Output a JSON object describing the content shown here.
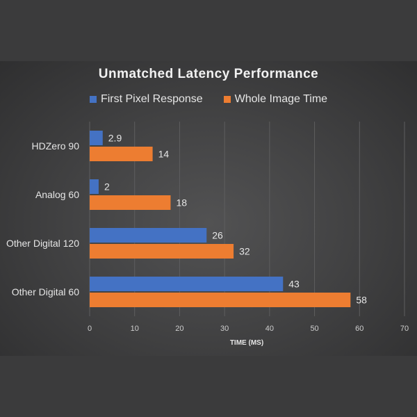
{
  "chart_data": {
    "type": "bar",
    "orientation": "horizontal",
    "title": "Unmatched Latency Performance",
    "xlabel": "TIME (MS)",
    "ylabel": "",
    "categories": [
      "HDZero 90",
      "Analog 60",
      "Other Digital 120",
      "Other Digital 60"
    ],
    "series": [
      {
        "name": "First Pixel Response",
        "color": "#4472c4",
        "values": [
          2.9,
          2,
          26,
          43
        ]
      },
      {
        "name": "Whole Image Time",
        "color": "#ed7d31",
        "values": [
          14,
          18,
          32,
          58
        ]
      }
    ],
    "xlim": [
      0,
      70
    ],
    "xticks": [
      0,
      10,
      20,
      30,
      40,
      50,
      60,
      70
    ],
    "grid": true,
    "legend_position": "top"
  }
}
